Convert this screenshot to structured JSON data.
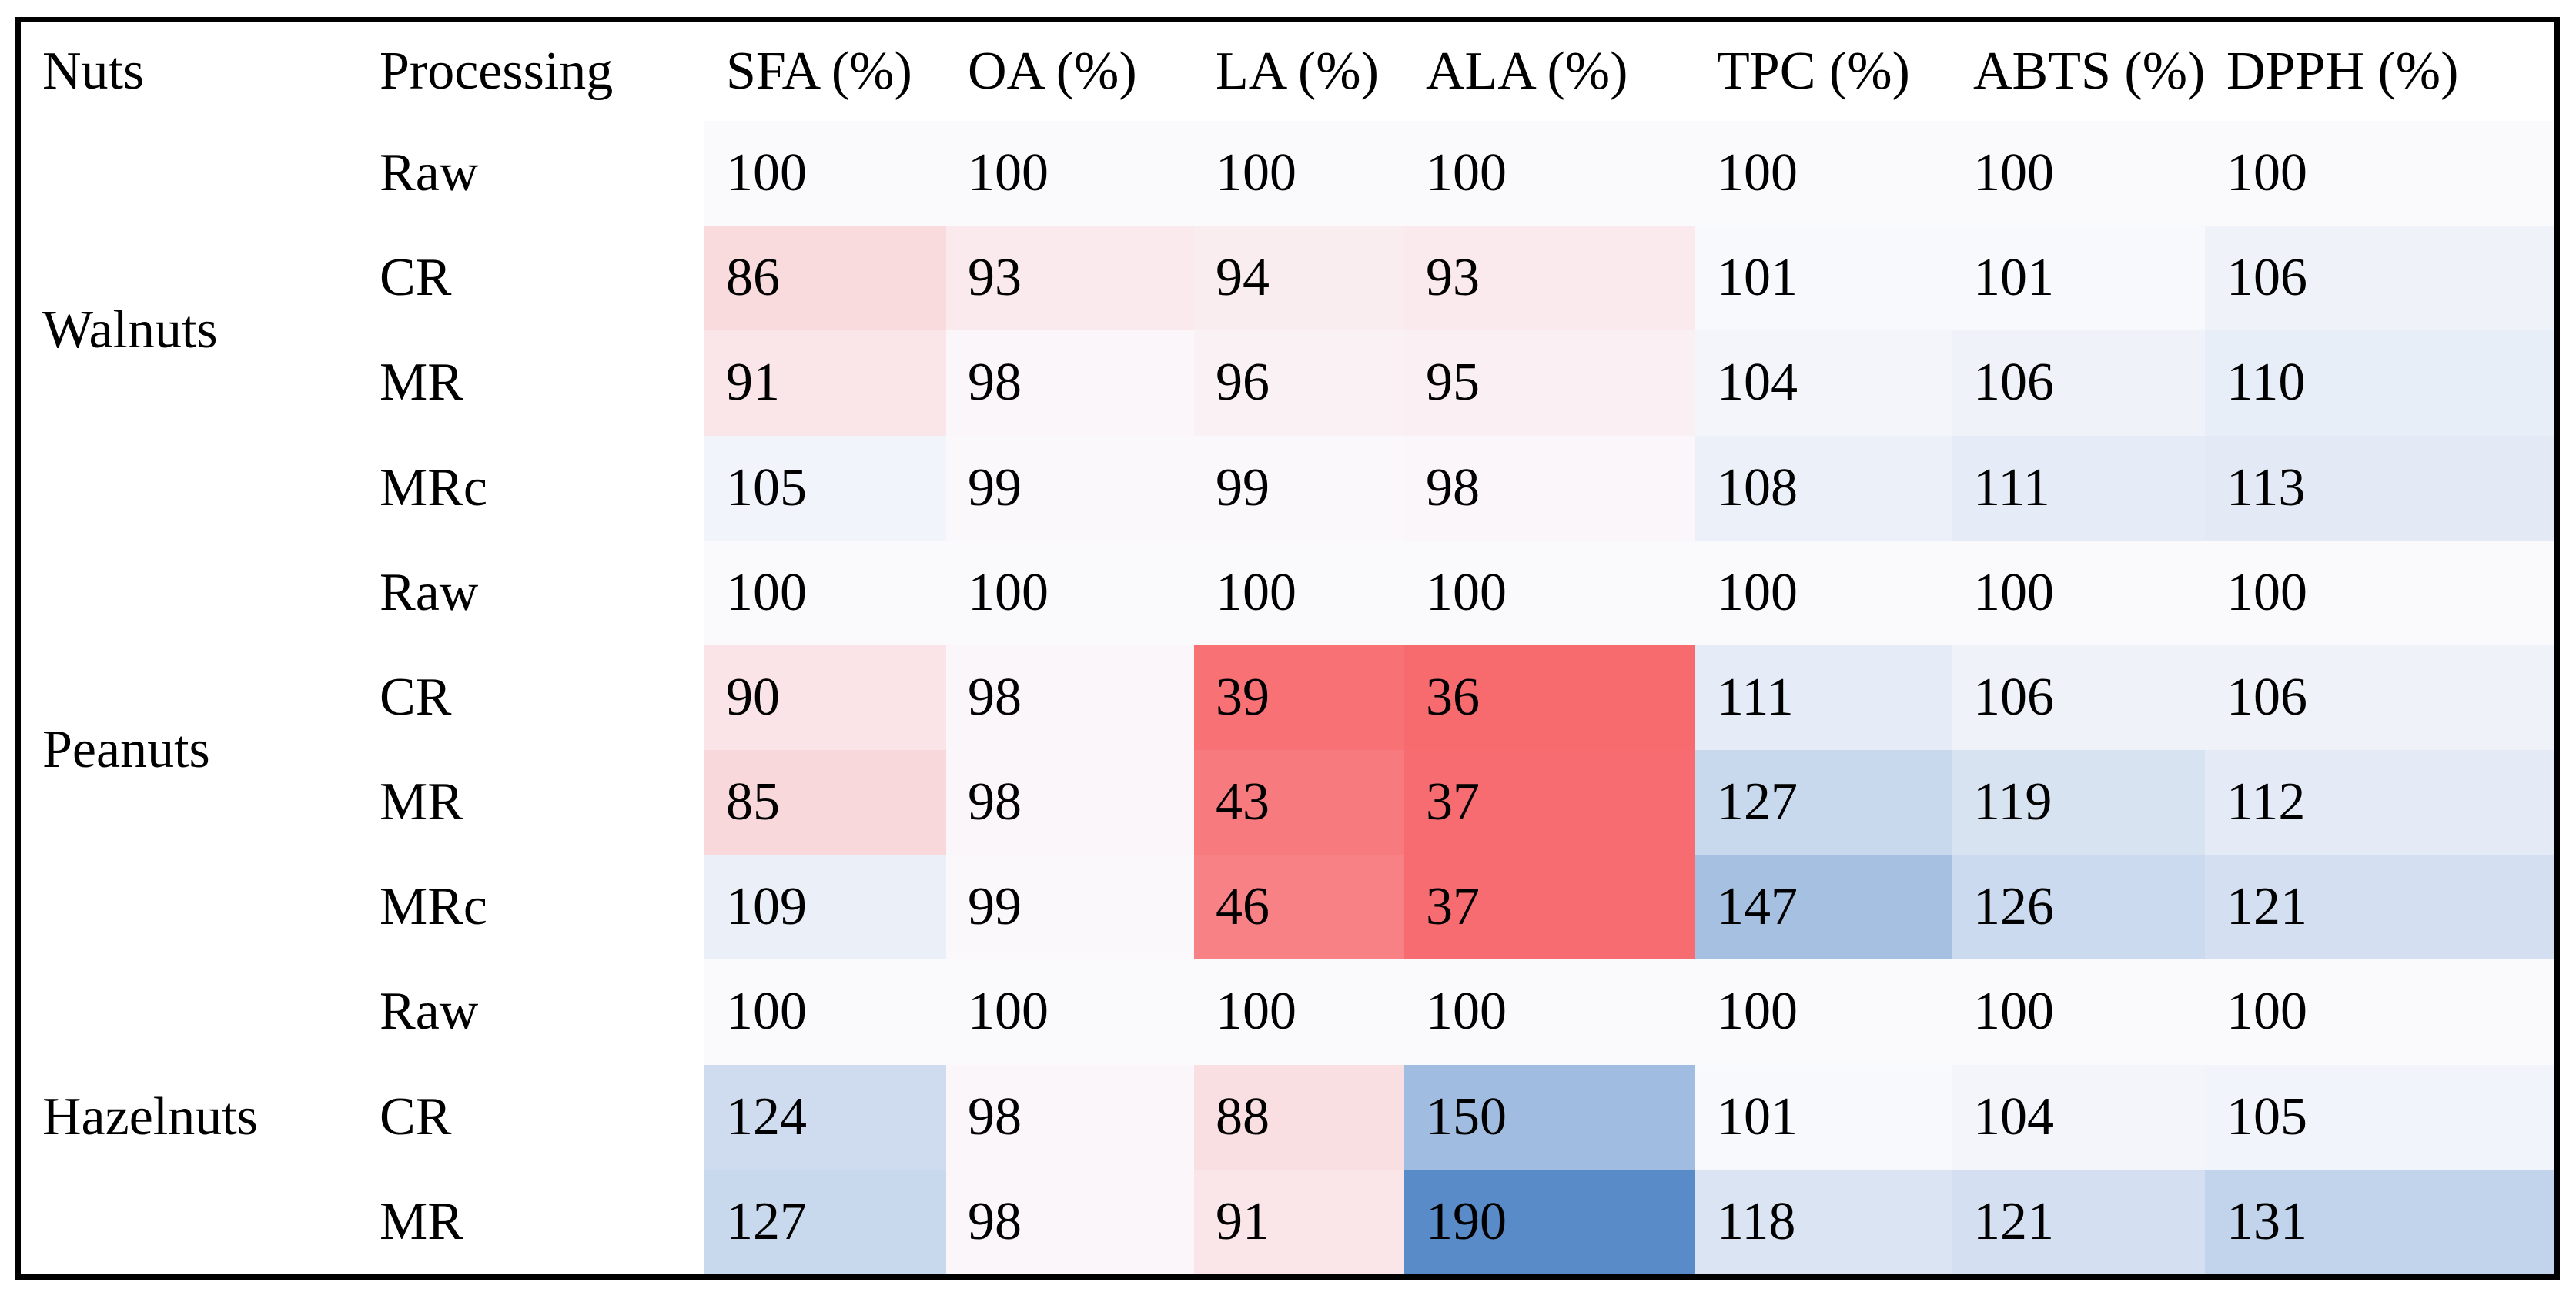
{
  "page": {
    "background": "#ffffff",
    "frame_border_color": "#000000",
    "text_color": "#000000"
  },
  "chart_data": {
    "type": "heatmap",
    "columns": [
      "Nuts",
      "Processing",
      "SFA (%)",
      "OA (%)",
      "LA (%)",
      "ALA (%)",
      "TPC (%)",
      "ABTS (%)",
      "DPPH (%)"
    ],
    "groups": [
      {
        "nut": "Walnuts",
        "rows": [
          {
            "processing": "Raw",
            "values": [
              100,
              100,
              100,
              100,
              100,
              100,
              100
            ]
          },
          {
            "processing": "CR",
            "values": [
              86,
              93,
              94,
              93,
              101,
              101,
              106
            ]
          },
          {
            "processing": "MR",
            "values": [
              91,
              98,
              96,
              95,
              104,
              106,
              110
            ]
          },
          {
            "processing": "MRc",
            "values": [
              105,
              99,
              99,
              98,
              108,
              111,
              113
            ]
          }
        ]
      },
      {
        "nut": "Peanuts",
        "rows": [
          {
            "processing": "Raw",
            "values": [
              100,
              100,
              100,
              100,
              100,
              100,
              100
            ]
          },
          {
            "processing": "CR",
            "values": [
              90,
              98,
              39,
              36,
              111,
              106,
              106
            ]
          },
          {
            "processing": "MR",
            "values": [
              85,
              98,
              43,
              37,
              127,
              119,
              112
            ]
          },
          {
            "processing": "MRc",
            "values": [
              109,
              99,
              46,
              37,
              147,
              126,
              121
            ]
          }
        ]
      },
      {
        "nut": "Hazelnuts",
        "rows": [
          {
            "processing": "Raw",
            "values": [
              100,
              100,
              100,
              100,
              100,
              100,
              100
            ]
          },
          {
            "processing": "CR",
            "values": [
              124,
              98,
              88,
              150,
              101,
              104,
              105
            ]
          },
          {
            "processing": "MR",
            "values": [
              127,
              98,
              91,
              190,
              118,
              121,
              131
            ]
          }
        ]
      }
    ],
    "heatmap": {
      "mid_value": 100,
      "min_value": 36,
      "max_value": 190,
      "neg_color": "#f76a6e",
      "mid_color": "#fafafd",
      "pos_color": "#588bc8"
    },
    "legend_position": "none",
    "grid": false
  }
}
